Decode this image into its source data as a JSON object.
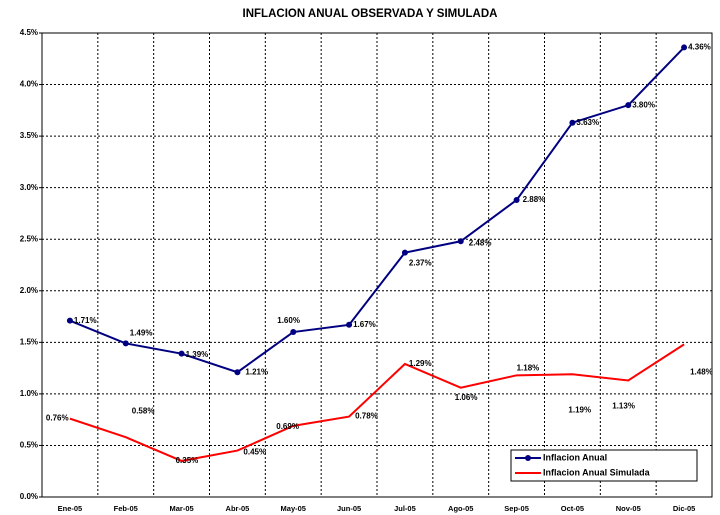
{
  "chart_data": {
    "type": "line",
    "title": "INFLACION ANUAL OBSERVADA Y SIMULADA",
    "categories": [
      "Ene-05",
      "Feb-05",
      "Mar-05",
      "Abr-05",
      "May-05",
      "Jun-05",
      "Jul-05",
      "Ago-05",
      "Sep-05",
      "Oct-05",
      "Nov-05",
      "Dic-05"
    ],
    "series": [
      {
        "name": "Inflacion Anual",
        "color": "#000080",
        "marker": "circle",
        "values": [
          1.71,
          1.49,
          1.39,
          1.21,
          1.6,
          1.67,
          2.37,
          2.48,
          2.88,
          3.63,
          3.8,
          4.36
        ],
        "value_labels": [
          "1.71%",
          "1.49%",
          "1.39%",
          "1.21%",
          "1.60%",
          "1.67%",
          "2.37%",
          "2.48%",
          "2.88%",
          "3.63%",
          "3.80%",
          "4.36%"
        ]
      },
      {
        "name": "Inflacion Anual  Simulada",
        "color": "#ff0000",
        "values": [
          0.76,
          0.58,
          0.35,
          0.45,
          0.69,
          0.78,
          1.29,
          1.06,
          1.18,
          1.19,
          1.13,
          1.48
        ],
        "value_labels": [
          "0.76%",
          "0.58%",
          "0.35%",
          "0.45%",
          "0.69%",
          "0.78%",
          "1.29%",
          "1.06%",
          "1.18%",
          "1.19%",
          "1.13%",
          "1.48%"
        ]
      }
    ],
    "ylim": [
      0,
      4.5
    ],
    "yticks": [
      {
        "value": 0,
        "label": "0.0%"
      },
      {
        "value": 0.5,
        "label": "0.5%"
      },
      {
        "value": 1,
        "label": "1.0%"
      },
      {
        "value": 1.5,
        "label": "1.5%"
      },
      {
        "value": 2,
        "label": "2.0%"
      },
      {
        "value": 2.5,
        "label": "2.5%"
      },
      {
        "value": 3,
        "label": "3.0%"
      },
      {
        "value": 3.5,
        "label": "3.5%"
      },
      {
        "value": 4,
        "label": "4.0%"
      },
      {
        "value": 4.5,
        "label": "4.5%"
      }
    ],
    "grid": true,
    "legend": "lower right"
  }
}
